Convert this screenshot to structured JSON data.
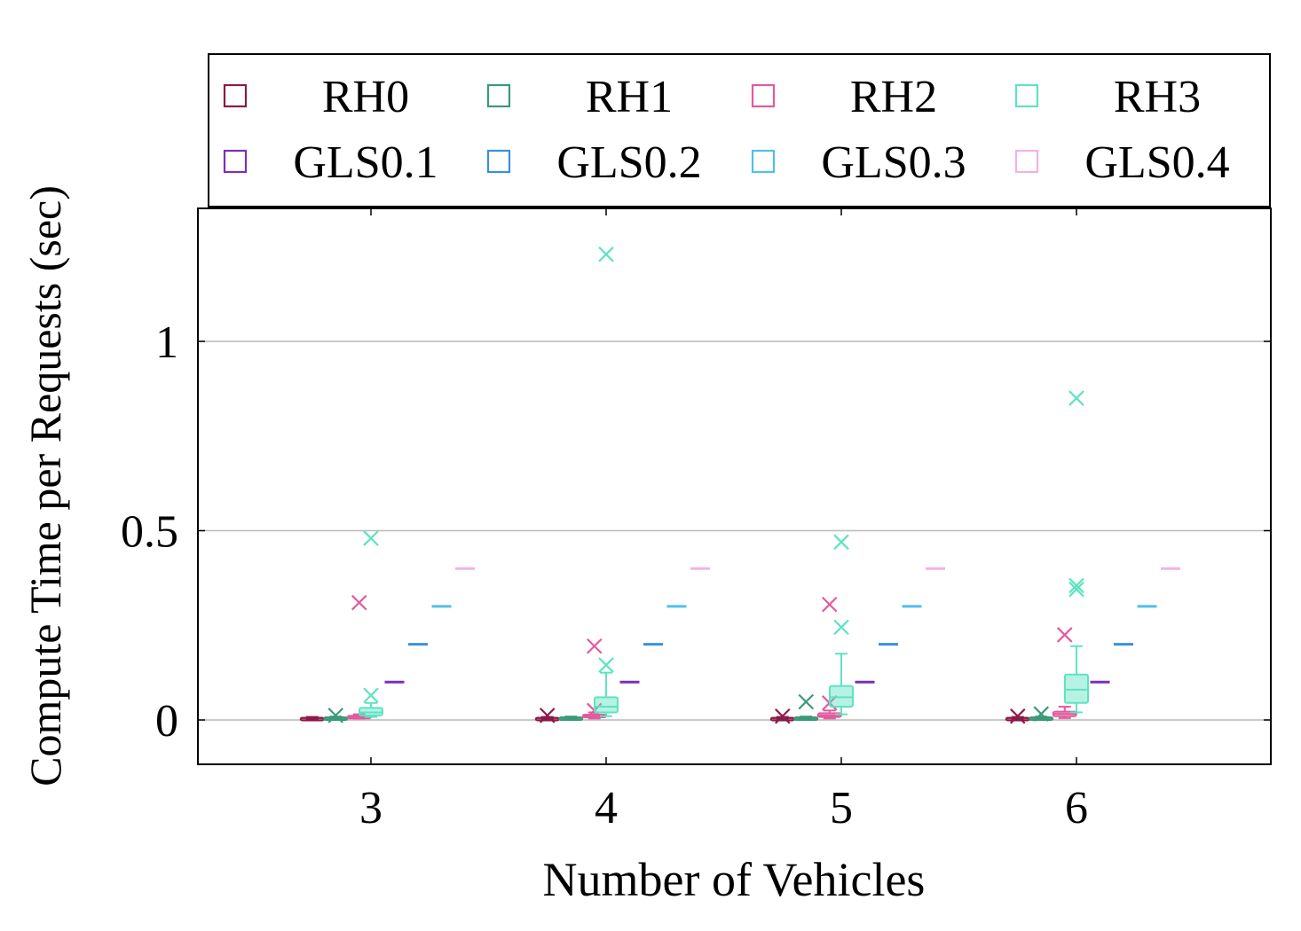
{
  "chart_data": {
    "type": "boxplot",
    "xlabel": "Number of Vehicles",
    "ylabel": "Compute Time per Requests (sec)",
    "categories": [
      "3",
      "4",
      "5",
      "6"
    ],
    "ylim": [
      -0.12,
      1.35
    ],
    "yticks": [
      0,
      0.5,
      1
    ],
    "ytick_labels": [
      "0",
      "0.5",
      "1"
    ],
    "grid": "horizontal",
    "legend_position": "top",
    "series": [
      {
        "name": "RH0",
        "color": "#8b1a4a",
        "offset": -0.25,
        "kind": "box",
        "boxes": [
          {
            "min": 0.003,
            "q1": 0.004,
            "median": 0.005,
            "q3": 0.006,
            "max": 0.008,
            "outliers": []
          },
          {
            "min": 0.003,
            "q1": 0.004,
            "median": 0.005,
            "q3": 0.006,
            "max": 0.008,
            "outliers": [
              0.012
            ]
          },
          {
            "min": 0.003,
            "q1": 0.004,
            "median": 0.005,
            "q3": 0.006,
            "max": 0.008,
            "outliers": [
              0.01
            ]
          },
          {
            "min": 0.003,
            "q1": 0.004,
            "median": 0.005,
            "q3": 0.006,
            "max": 0.008,
            "outliers": [
              0.01
            ]
          }
        ]
      },
      {
        "name": "RH1",
        "color": "#3a9a78",
        "offset": -0.15,
        "kind": "box",
        "boxes": [
          {
            "min": 0.003,
            "q1": 0.004,
            "median": 0.005,
            "q3": 0.007,
            "max": 0.009,
            "outliers": [
              0.012
            ]
          },
          {
            "min": 0.003,
            "q1": 0.004,
            "median": 0.005,
            "q3": 0.007,
            "max": 0.009,
            "outliers": []
          },
          {
            "min": 0.003,
            "q1": 0.004,
            "median": 0.005,
            "q3": 0.007,
            "max": 0.009,
            "outliers": [
              0.048
            ]
          },
          {
            "min": 0.003,
            "q1": 0.004,
            "median": 0.005,
            "q3": 0.007,
            "max": 0.009,
            "outliers": [
              0.016
            ]
          }
        ]
      },
      {
        "name": "RH2",
        "color": "#e35a9e",
        "offset": -0.05,
        "kind": "box",
        "boxes": [
          {
            "min": 0.004,
            "q1": 0.006,
            "median": 0.008,
            "q3": 0.011,
            "max": 0.015,
            "outliers": [
              0.31
            ]
          },
          {
            "min": 0.004,
            "q1": 0.007,
            "median": 0.01,
            "q3": 0.014,
            "max": 0.02,
            "outliers": [
              0.195,
              0.025
            ]
          },
          {
            "min": 0.004,
            "q1": 0.008,
            "median": 0.012,
            "q3": 0.018,
            "max": 0.025,
            "outliers": [
              0.305,
              0.045
            ]
          },
          {
            "min": 0.005,
            "q1": 0.01,
            "median": 0.016,
            "q3": 0.022,
            "max": 0.035,
            "outliers": [
              0.225
            ]
          }
        ]
      },
      {
        "name": "RH3",
        "color": "#5ee3c2",
        "offset": 0.0,
        "kind": "box",
        "boxes": [
          {
            "min": 0.008,
            "q1": 0.012,
            "median": 0.02,
            "q3": 0.032,
            "max": 0.045,
            "outliers": [
              0.48,
              0.065
            ]
          },
          {
            "min": 0.01,
            "q1": 0.02,
            "median": 0.035,
            "q3": 0.06,
            "max": 0.125,
            "outliers": [
              1.23,
              0.145
            ]
          },
          {
            "min": 0.015,
            "q1": 0.035,
            "median": 0.06,
            "q3": 0.09,
            "max": 0.175,
            "outliers": [
              0.47,
              0.245
            ]
          },
          {
            "min": 0.02,
            "q1": 0.045,
            "median": 0.08,
            "q3": 0.12,
            "max": 0.195,
            "outliers": [
              0.85,
              0.355,
              0.345
            ]
          }
        ]
      },
      {
        "name": "GLS0.1",
        "color": "#7a30b8",
        "offset": 0.1,
        "kind": "line",
        "values": [
          0.1,
          0.1,
          0.1,
          0.1
        ]
      },
      {
        "name": "GLS0.2",
        "color": "#3a8fe0",
        "offset": 0.2,
        "kind": "line",
        "values": [
          0.2,
          0.2,
          0.2,
          0.2
        ]
      },
      {
        "name": "GLS0.3",
        "color": "#52bfe8",
        "offset": 0.3,
        "kind": "line",
        "values": [
          0.3,
          0.3,
          0.3,
          0.3
        ]
      },
      {
        "name": "GLS0.4",
        "color": "#f2b2e6",
        "offset": 0.4,
        "kind": "line",
        "values": [
          0.4,
          0.4,
          0.4,
          0.4
        ]
      }
    ]
  }
}
